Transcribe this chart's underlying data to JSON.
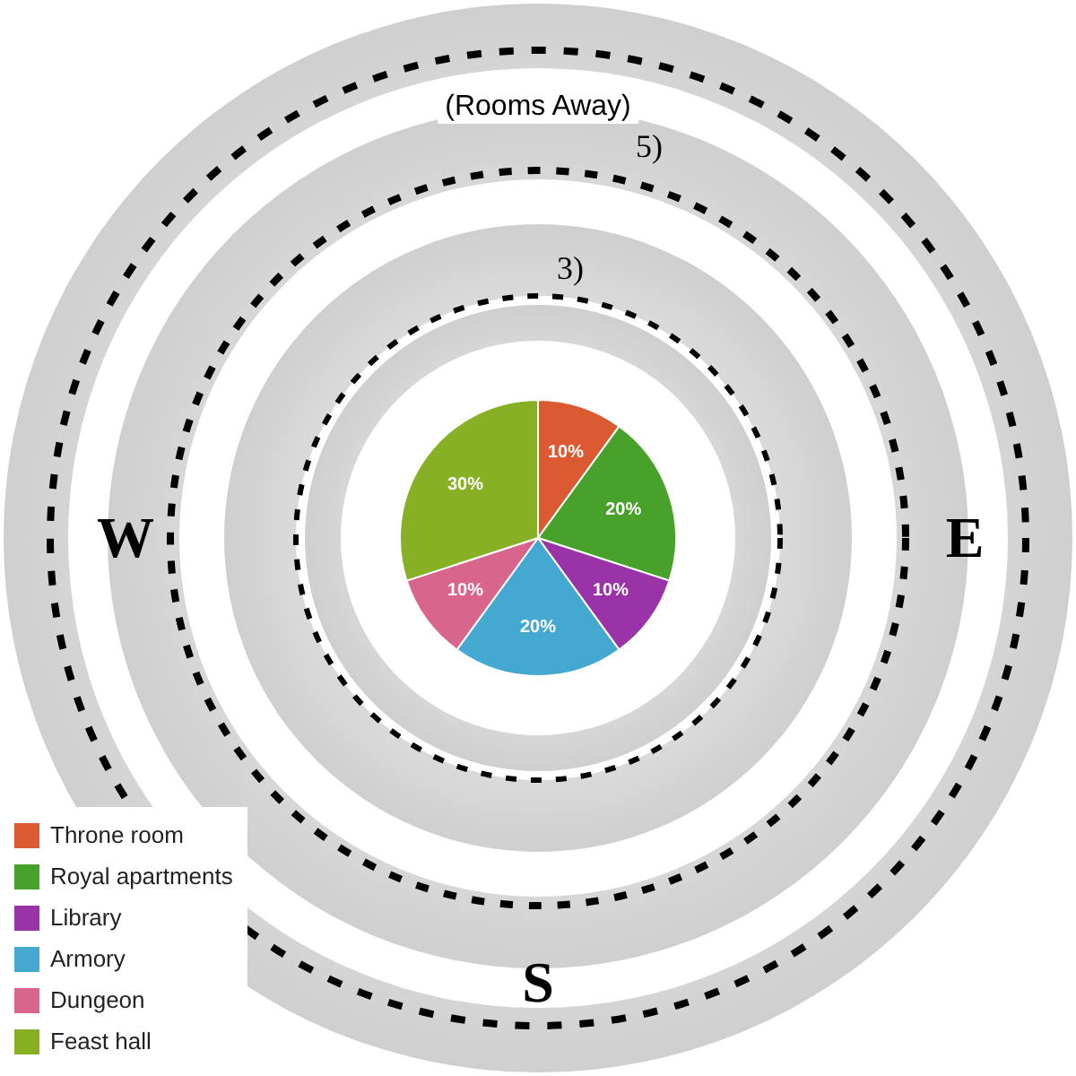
{
  "chart_data": {
    "type": "pie",
    "categories": [
      "Throne room",
      "Royal apartments",
      "Library",
      "Armory",
      "Dungeon",
      "Feast hall"
    ],
    "values": [
      10,
      20,
      10,
      20,
      10,
      30
    ],
    "colors": [
      "#dc5a32",
      "#48a12a",
      "#9b33a8",
      "#45a8d0",
      "#d9648c",
      "#88b024"
    ],
    "value_labels": [
      "10%",
      "20%",
      "10%",
      "20%",
      "10%",
      "30%"
    ],
    "legend": "bottom left",
    "annotations": [
      "(Rooms Away)",
      "5)",
      "3)",
      "W",
      "E",
      "S"
    ]
  }
}
